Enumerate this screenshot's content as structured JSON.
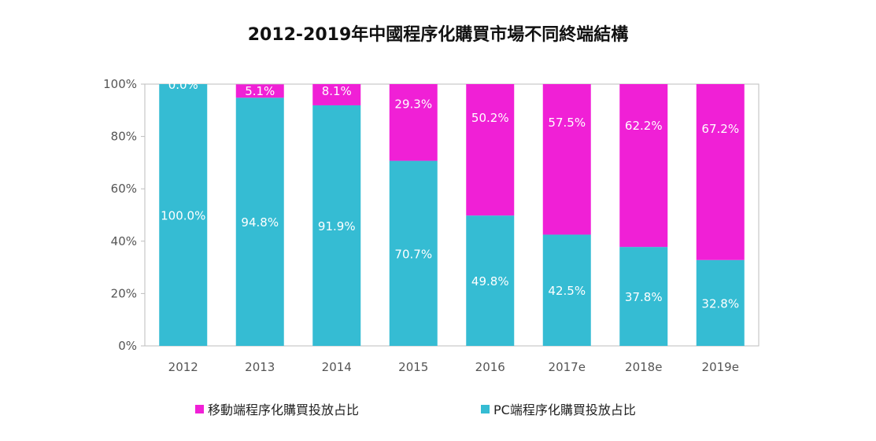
{
  "chart_data": {
    "type": "bar",
    "stacked": true,
    "title": "2012-2019年中國程序化購買市場不同終端結構",
    "categories": [
      "2012",
      "2013",
      "2014",
      "2015",
      "2016",
      "2017e",
      "2018e",
      "2019e"
    ],
    "series": [
      {
        "name": "PC端程序化購買投放占比",
        "color": "#35BCD3",
        "values": [
          100.0,
          94.8,
          91.9,
          70.7,
          49.8,
          42.5,
          37.8,
          32.8
        ],
        "labels": [
          "100.0%",
          "94.8%",
          "91.9%",
          "70.7%",
          "49.8%",
          "42.5%",
          "37.8%",
          "32.8%"
        ]
      },
      {
        "name": "移動端程序化購買投放占比",
        "color": "#F020D6",
        "values": [
          0.0,
          5.1,
          8.1,
          29.3,
          50.2,
          57.5,
          62.2,
          67.2
        ],
        "labels": [
          "0.0%",
          "5.1%",
          "8.1%",
          "29.3%",
          "50.2%",
          "57.5%",
          "62.2%",
          "67.2%"
        ]
      }
    ],
    "ylim": [
      0,
      100
    ],
    "yticks": [
      0,
      20,
      40,
      60,
      80,
      100
    ],
    "ytick_labels": [
      "0%",
      "20%",
      "40%",
      "60%",
      "80%",
      "100%"
    ],
    "xlabel": "",
    "ylabel": "",
    "grid": false,
    "legend_position": "bottom",
    "legend_order": [
      1,
      0
    ]
  }
}
